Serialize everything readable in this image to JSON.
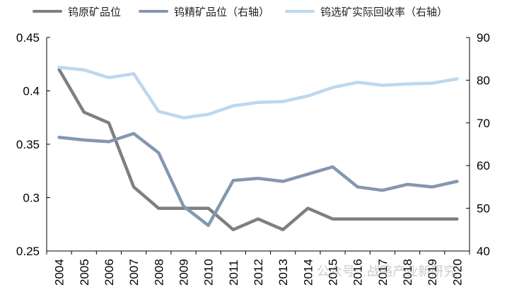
{
  "chart_data": {
    "type": "line",
    "title": "",
    "x": [
      "2004",
      "2005",
      "2006",
      "2007",
      "2008",
      "2009",
      "2010",
      "2011",
      "2012",
      "2013",
      "2014",
      "2015",
      "2016",
      "2017",
      "2018",
      "2019",
      "2020"
    ],
    "y_left": {
      "ylim": [
        0.25,
        0.45
      ],
      "ticks": [
        "0.25",
        "0.3",
        "0.35",
        "0.4",
        "0.45"
      ]
    },
    "y_right": {
      "ylim": [
        40,
        90
      ],
      "ticks": [
        "40",
        "50",
        "60",
        "70",
        "80",
        "90"
      ]
    },
    "legend_position": "top",
    "series": [
      {
        "name": "钨原矿品位",
        "axis": "left",
        "color": "#7f7f7f",
        "values": [
          0.42,
          0.38,
          0.37,
          0.31,
          0.29,
          0.29,
          0.29,
          0.27,
          0.28,
          0.27,
          0.29,
          0.28,
          0.28,
          0.28,
          0.28,
          0.28,
          0.28
        ]
      },
      {
        "name": "钨精矿品位（右轴）",
        "axis": "right",
        "color": "#8497b0",
        "values": [
          66.6,
          66.0,
          65.6,
          67.5,
          63.0,
          50.5,
          46.0,
          56.5,
          57.0,
          56.3,
          58.0,
          59.7,
          55.0,
          54.2,
          55.6,
          55.0,
          56.3
        ]
      },
      {
        "name": "钨选矿实际回收率（右轴）",
        "axis": "right",
        "color": "#bdd7ee",
        "values": [
          83.0,
          82.4,
          80.6,
          81.5,
          72.7,
          71.2,
          72.0,
          74.0,
          74.8,
          75.0,
          76.3,
          78.3,
          79.5,
          78.8,
          79.1,
          79.3,
          80.3
        ]
      }
    ]
  },
  "watermark": "公众号 · 战略产业新研究"
}
